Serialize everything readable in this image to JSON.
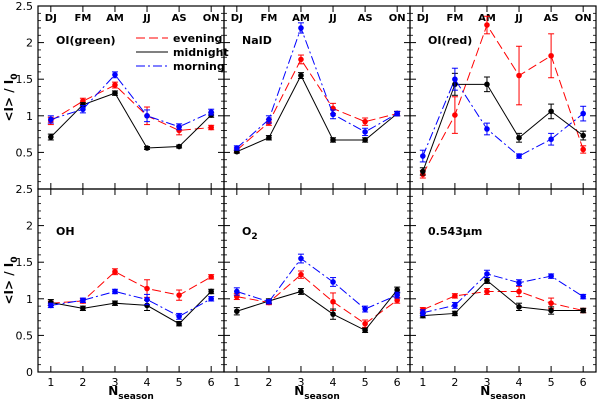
{
  "chart_data": {
    "type": "line",
    "x": [
      1,
      2,
      3,
      4,
      5,
      6
    ],
    "ylim": [
      0,
      2.5
    ],
    "xlim": [
      0.6,
      6.4
    ],
    "yticks": [
      "0",
      "0.5",
      "1",
      "1.5",
      "2",
      "2.5"
    ],
    "xticks": [
      "1",
      "2",
      "3",
      "4",
      "5",
      "6"
    ],
    "season_labels": [
      "DJ",
      "FM",
      "AM",
      "JJ",
      "AS",
      "ON"
    ],
    "ylabel": "<I> / I",
    "ylabel_sub": "0",
    "xlabel": "N",
    "xlabel_sub": "season",
    "legend": {
      "location": "top-right of first panel",
      "entries": [
        {
          "key": "evening",
          "label": "evening"
        },
        {
          "key": "midnight",
          "label": "midnight"
        },
        {
          "key": "morning",
          "label": "morning"
        }
      ]
    },
    "series_styles": {
      "evening": {
        "color": "#ff0000",
        "dash": "9 4"
      },
      "midnight": {
        "color": "#000000",
        "dash": ""
      },
      "morning": {
        "color": "#0000ff",
        "dash": "9 3 2 3"
      }
    },
    "panels": [
      {
        "title": "OI(green)",
        "title_sub": "",
        "series": [
          {
            "name": "evening",
            "values": [
              0.93,
              1.2,
              1.42,
              1.0,
              0.8,
              0.84
            ],
            "errors": [
              0.05,
              0.04,
              0.04,
              0.12,
              0.06,
              0.03
            ]
          },
          {
            "name": "midnight",
            "values": [
              0.71,
              1.15,
              1.31,
              0.56,
              0.58,
              1.01
            ],
            "errors": [
              0.04,
              0.03,
              0.03,
              0.02,
              0.02,
              0.03
            ]
          },
          {
            "name": "morning",
            "values": [
              0.95,
              1.09,
              1.56,
              1.0,
              0.85,
              1.05
            ],
            "errors": [
              0.05,
              0.05,
              0.04,
              0.08,
              0.04,
              0.04
            ]
          }
        ]
      },
      {
        "title": "NaID",
        "title_sub": "",
        "series": [
          {
            "name": "evening",
            "values": [
              0.53,
              0.91,
              1.77,
              1.1,
              0.92,
              1.03
            ],
            "errors": [
              0.03,
              0.04,
              0.06,
              0.07,
              0.05,
              0.03
            ]
          },
          {
            "name": "midnight",
            "values": [
              0.51,
              0.7,
              1.55,
              0.67,
              0.67,
              1.03
            ],
            "errors": [
              0.02,
              0.03,
              0.04,
              0.03,
              0.03,
              0.03
            ]
          },
          {
            "name": "morning",
            "values": [
              0.56,
              0.95,
              2.2,
              1.02,
              0.78,
              1.03
            ],
            "errors": [
              0.03,
              0.05,
              0.07,
              0.06,
              0.05,
              0.03
            ]
          }
        ]
      },
      {
        "title": "OI(red)",
        "title_sub": "",
        "series": [
          {
            "name": "evening",
            "values": [
              0.2,
              1.01,
              2.24,
              1.55,
              1.82,
              0.54
            ],
            "errors": [
              0.05,
              0.25,
              0.12,
              0.4,
              0.3,
              0.05
            ]
          },
          {
            "name": "midnight",
            "values": [
              0.24,
              1.43,
              1.43,
              0.7,
              1.06,
              0.73
            ],
            "errors": [
              0.05,
              0.15,
              0.1,
              0.06,
              0.1,
              0.06
            ]
          },
          {
            "name": "morning",
            "values": [
              0.45,
              1.5,
              0.82,
              0.45,
              0.68,
              1.03
            ],
            "errors": [
              0.08,
              0.15,
              0.08,
              0.03,
              0.08,
              0.1
            ]
          }
        ]
      },
      {
        "title": "OH",
        "title_sub": "",
        "series": [
          {
            "name": "evening",
            "values": [
              0.94,
              0.97,
              1.37,
              1.14,
              1.05,
              1.3
            ],
            "errors": [
              0.03,
              0.03,
              0.04,
              0.12,
              0.07,
              0.03
            ]
          },
          {
            "name": "midnight",
            "values": [
              0.95,
              0.87,
              0.94,
              0.91,
              0.66,
              1.1
            ],
            "errors": [
              0.04,
              0.03,
              0.03,
              0.07,
              0.03,
              0.03
            ]
          },
          {
            "name": "morning",
            "values": [
              0.91,
              0.98,
              1.1,
              0.99,
              0.76,
              1.0
            ],
            "errors": [
              0.03,
              0.03,
              0.03,
              0.07,
              0.04,
              0.03
            ]
          }
        ]
      },
      {
        "title": "O",
        "title_sub": "2",
        "series": [
          {
            "name": "evening",
            "values": [
              1.03,
              0.95,
              1.33,
              0.96,
              0.66,
              0.98
            ],
            "errors": [
              0.04,
              0.03,
              0.05,
              0.12,
              0.05,
              0.04
            ]
          },
          {
            "name": "midnight",
            "values": [
              0.83,
              0.97,
              1.1,
              0.79,
              0.57,
              1.12
            ],
            "errors": [
              0.05,
              0.03,
              0.04,
              0.07,
              0.03,
              0.04
            ]
          },
          {
            "name": "morning",
            "values": [
              1.1,
              0.96,
              1.55,
              1.23,
              0.86,
              1.05
            ],
            "errors": [
              0.05,
              0.03,
              0.06,
              0.06,
              0.04,
              0.04
            ]
          }
        ]
      },
      {
        "title": "0.543μm",
        "title_sub": "",
        "series": [
          {
            "name": "evening",
            "values": [
              0.85,
              1.04,
              1.1,
              1.1,
              0.94,
              0.84
            ],
            "errors": [
              0.03,
              0.03,
              0.04,
              0.07,
              0.07,
              0.03
            ]
          },
          {
            "name": "midnight",
            "values": [
              0.77,
              0.8,
              1.25,
              0.89,
              0.84,
              0.84
            ],
            "errors": [
              0.03,
              0.03,
              0.04,
              0.05,
              0.05,
              0.03
            ]
          },
          {
            "name": "morning",
            "values": [
              0.81,
              0.91,
              1.34,
              1.22,
              1.31,
              1.03
            ],
            "errors": [
              0.04,
              0.04,
              0.05,
              0.04,
              0.03,
              0.03
            ]
          }
        ]
      }
    ]
  }
}
